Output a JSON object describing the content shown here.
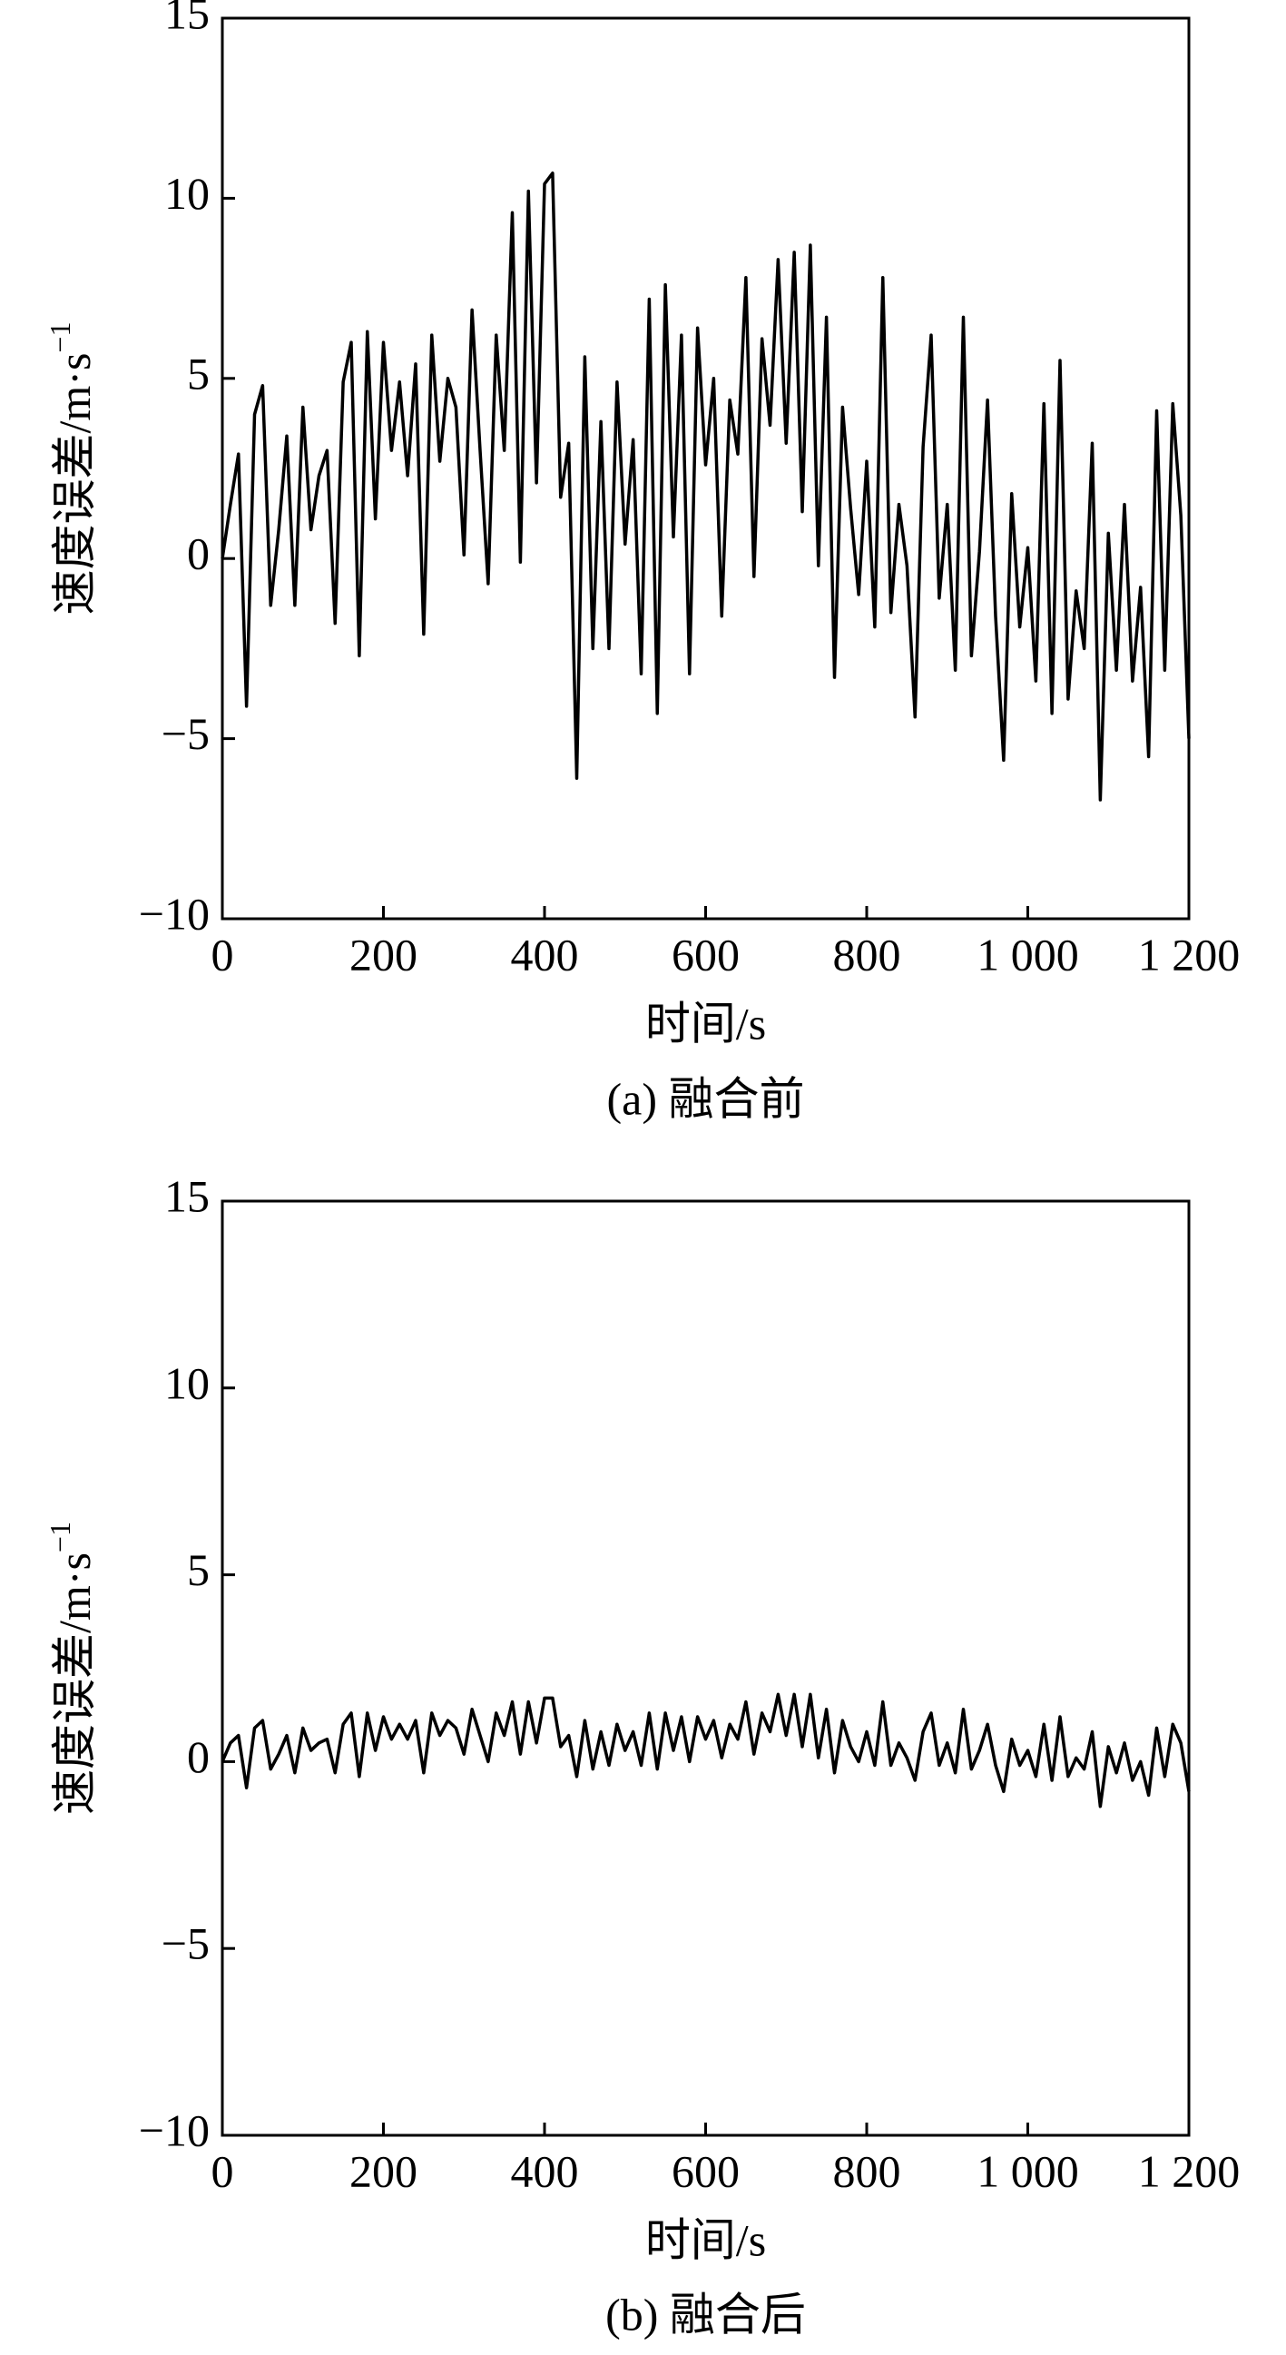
{
  "chart_data": [
    {
      "type": "line",
      "caption": "(a) 融合前",
      "xlabel": "时间/s",
      "ylabel": "速度误差/m·s",
      "ylabel_superscript": "−1",
      "xlim": [
        0,
        1200
      ],
      "ylim": [
        -10,
        15
      ],
      "xticks": [
        0,
        200,
        400,
        600,
        800,
        {
          "value": 1000,
          "label": "1 000"
        },
        {
          "value": 1200,
          "label": "1 200"
        }
      ],
      "yticks": [
        {
          "value": -10,
          "label": "−10"
        },
        {
          "value": -5,
          "label": "−5"
        },
        0,
        5,
        10,
        15
      ],
      "x": [
        0,
        10,
        20,
        30,
        40,
        50,
        60,
        70,
        80,
        90,
        100,
        110,
        120,
        130,
        140,
        150,
        160,
        170,
        180,
        190,
        200,
        210,
        220,
        230,
        240,
        250,
        260,
        270,
        280,
        290,
        300,
        310,
        320,
        330,
        340,
        350,
        360,
        370,
        380,
        390,
        400,
        410,
        420,
        430,
        440,
        450,
        460,
        470,
        480,
        490,
        500,
        510,
        520,
        530,
        540,
        550,
        560,
        570,
        580,
        590,
        600,
        610,
        620,
        630,
        640,
        650,
        660,
        670,
        680,
        690,
        700,
        710,
        720,
        730,
        740,
        750,
        760,
        770,
        780,
        790,
        800,
        810,
        820,
        830,
        840,
        850,
        860,
        870,
        880,
        890,
        900,
        910,
        920,
        930,
        940,
        950,
        960,
        970,
        980,
        990,
        1000,
        1010,
        1020,
        1030,
        1040,
        1050,
        1060,
        1070,
        1080,
        1090,
        1100,
        1110,
        1120,
        1130,
        1140,
        1150,
        1160,
        1170,
        1180,
        1190,
        1200
      ],
      "series": [
        {
          "color": "#000000",
          "values": [
            0,
            1.5,
            2.9,
            -4.1,
            4,
            4.8,
            -1.3,
            0.8,
            3.4,
            -1.3,
            4.2,
            0.8,
            2.3,
            3,
            -1.8,
            4.9,
            6,
            -2.7,
            6.3,
            1.1,
            6,
            3,
            4.9,
            2.3,
            5.4,
            -2.1,
            6.2,
            2.7,
            5,
            4.2,
            0.1,
            6.9,
            3,
            -0.7,
            6.2,
            3,
            9.6,
            -0.1,
            10.2,
            2.1,
            10.4,
            10.7,
            1.7,
            3.2,
            -6.1,
            5.6,
            -2.5,
            3.8,
            -2.5,
            4.9,
            0.4,
            3.3,
            -3.2,
            7.2,
            -4.3,
            7.6,
            0.6,
            6.2,
            -3.2,
            6.4,
            2.6,
            5,
            -1.6,
            4.4,
            2.9,
            7.8,
            -0.5,
            6.1,
            3.7,
            8.3,
            3.2,
            8.5,
            1.3,
            8.7,
            -0.2,
            6.7,
            -3.3,
            4.2,
            1.4,
            -1,
            2.7,
            -1.9,
            7.8,
            -1.5,
            1.5,
            -0.2,
            -4.4,
            3.1,
            6.2,
            -1.1,
            1.5,
            -3.1,
            6.7,
            -2.7,
            0.2,
            4.4,
            -1.6,
            -5.6,
            1.8,
            -1.9,
            0.3,
            -3.4,
            4.3,
            -4.3,
            5.5,
            -3.9,
            -0.9,
            -2.5,
            3.2,
            -6.7,
            0.7,
            -3.1,
            1.5,
            -3.4,
            -0.8,
            -5.5,
            4.1,
            -3.1,
            4.3,
            1.2,
            -5
          ]
        }
      ]
    },
    {
      "type": "line",
      "caption": "(b) 融合后",
      "xlabel": "时间/s",
      "ylabel": "速度误差/m·s",
      "ylabel_superscript": "−1",
      "xlim": [
        0,
        1200
      ],
      "ylim": [
        -10,
        15
      ],
      "xticks": [
        0,
        200,
        400,
        600,
        800,
        {
          "value": 1000,
          "label": "1 000"
        },
        {
          "value": 1200,
          "label": "1 200"
        }
      ],
      "yticks": [
        {
          "value": -10,
          "label": "−10"
        },
        {
          "value": -5,
          "label": "−5"
        },
        0,
        5,
        10,
        15
      ],
      "x": [
        0,
        10,
        20,
        30,
        40,
        50,
        60,
        70,
        80,
        90,
        100,
        110,
        120,
        130,
        140,
        150,
        160,
        170,
        180,
        190,
        200,
        210,
        220,
        230,
        240,
        250,
        260,
        270,
        280,
        290,
        300,
        310,
        320,
        330,
        340,
        350,
        360,
        370,
        380,
        390,
        400,
        410,
        420,
        430,
        440,
        450,
        460,
        470,
        480,
        490,
        500,
        510,
        520,
        530,
        540,
        550,
        560,
        570,
        580,
        590,
        600,
        610,
        620,
        630,
        640,
        650,
        660,
        670,
        680,
        690,
        700,
        710,
        720,
        730,
        740,
        750,
        760,
        770,
        780,
        790,
        800,
        810,
        820,
        830,
        840,
        850,
        860,
        870,
        880,
        890,
        900,
        910,
        920,
        930,
        940,
        950,
        960,
        970,
        980,
        990,
        1000,
        1010,
        1020,
        1030,
        1040,
        1050,
        1060,
        1070,
        1080,
        1090,
        1100,
        1110,
        1120,
        1130,
        1140,
        1150,
        1160,
        1170,
        1180,
        1190,
        1200
      ],
      "series": [
        {
          "color": "#000000",
          "values": [
            0,
            0.5,
            0.7,
            -0.7,
            0.9,
            1.1,
            -0.2,
            0.2,
            0.7,
            -0.3,
            0.9,
            0.3,
            0.5,
            0.6,
            -0.3,
            1,
            1.3,
            -0.4,
            1.3,
            0.3,
            1.2,
            0.6,
            1,
            0.6,
            1.1,
            -0.3,
            1.3,
            0.7,
            1.1,
            0.9,
            0.2,
            1.4,
            0.7,
            0,
            1.3,
            0.7,
            1.6,
            0.2,
            1.6,
            0.5,
            1.7,
            1.7,
            0.4,
            0.7,
            -0.4,
            1.1,
            -0.2,
            0.8,
            -0.1,
            1,
            0.3,
            0.8,
            -0.1,
            1.3,
            -0.2,
            1.3,
            0.3,
            1.2,
            0,
            1.2,
            0.6,
            1.1,
            0.1,
            1,
            0.6,
            1.6,
            0.2,
            1.3,
            0.8,
            1.8,
            0.7,
            1.8,
            0.4,
            1.8,
            0.1,
            1.4,
            -0.3,
            1.1,
            0.4,
            0,
            0.8,
            -0.1,
            1.6,
            -0.1,
            0.5,
            0.1,
            -0.5,
            0.8,
            1.3,
            -0.1,
            0.5,
            -0.3,
            1.4,
            -0.2,
            0.3,
            1,
            -0.1,
            -0.8,
            0.6,
            -0.1,
            0.3,
            -0.4,
            1,
            -0.5,
            1.2,
            -0.4,
            0.1,
            -0.2,
            0.8,
            -1.2,
            0.4,
            -0.3,
            0.5,
            -0.5,
            0,
            -0.9,
            0.9,
            -0.4,
            1,
            0.5,
            -0.8
          ]
        }
      ]
    }
  ]
}
